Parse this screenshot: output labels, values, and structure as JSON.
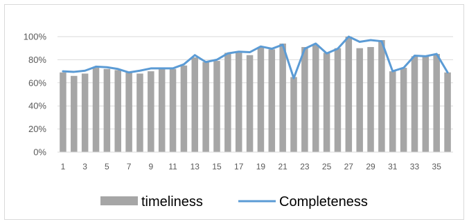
{
  "chart_data": {
    "type": "bar",
    "title": "",
    "xlabel": "",
    "ylabel": "",
    "ylim": [
      0,
      100
    ],
    "y_ticks": [
      "0%",
      "20%",
      "40%",
      "60%",
      "80%",
      "100%"
    ],
    "y_tick_values": [
      0,
      20,
      40,
      60,
      80,
      100
    ],
    "x_tick_labels": [
      "1",
      "3",
      "5",
      "7",
      "9",
      "11",
      "13",
      "15",
      "17",
      "19",
      "21",
      "23",
      "25",
      "27",
      "29",
      "31",
      "33",
      "35"
    ],
    "x_tick_values": [
      1,
      3,
      5,
      7,
      9,
      11,
      13,
      15,
      17,
      19,
      21,
      23,
      25,
      27,
      29,
      31,
      33,
      35
    ],
    "categories": [
      1,
      2,
      3,
      4,
      5,
      6,
      7,
      8,
      9,
      10,
      11,
      12,
      13,
      14,
      15,
      16,
      17,
      18,
      19,
      20,
      21,
      22,
      23,
      24,
      25,
      26,
      27,
      28,
      29,
      30,
      31,
      32,
      33,
      34,
      35,
      36
    ],
    "grid": true,
    "legend_position": "bottom",
    "series": [
      {
        "name": "timeliness",
        "type": "bar",
        "color": "#a6a6a6",
        "values": [
          69,
          66,
          68,
          73,
          72,
          71,
          69,
          68,
          70,
          72,
          72,
          75,
          82,
          78,
          79,
          86,
          86,
          84,
          91,
          89,
          94,
          65,
          91,
          93,
          86,
          90,
          100,
          90,
          91,
          97,
          70,
          73,
          83,
          83,
          85,
          69
        ]
      },
      {
        "name": "Completeness",
        "type": "line",
        "color": "#5b9bd5",
        "values": [
          70,
          69.5,
          70.5,
          74,
          73.5,
          72,
          69,
          70.5,
          72.5,
          72.5,
          72.5,
          76,
          84,
          78,
          80,
          85.5,
          87,
          86.5,
          91.5,
          89.5,
          93,
          64,
          89.5,
          94,
          85.5,
          89.5,
          100,
          95.5,
          97,
          96,
          70,
          73,
          83.5,
          83,
          85,
          69
        ]
      }
    ]
  }
}
